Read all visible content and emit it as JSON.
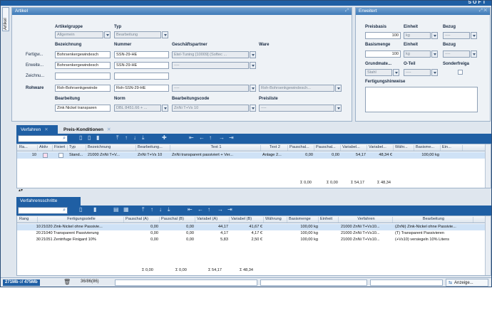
{
  "brand": "SOFT",
  "side_tab": "Artikel",
  "artikel": {
    "title": "Artikel",
    "artikelgruppe_label": "Artikelgruppe",
    "artikelgruppe": "Allgemein",
    "typ_label": "Typ",
    "typ": "Bearbeitung",
    "bezeichnung_label": "Bezeichnung",
    "nummer_label": "Nummer",
    "geschaeftspartner_label": "Geschäftspartner",
    "ware_label": "Ware",
    "fertigw_label": "Fertigw...",
    "fertigw_bez": "Bohrsenkergewindesch",
    "fertigw_nr": "SSN-29-HE",
    "fertigw_gp": "Etel-Tuning [10009] (Softec ...",
    "erweit_label": "Erweite...",
    "erweit_bez": "Bohrsenkergewindesch",
    "erweit_nr": "SSN-29-HE",
    "erweit_gp": "----",
    "zeichnu_label": "Zeichnu...",
    "rohware_label": "Rohware",
    "rohware_bez": "Roh-Bohrsenkgewinde",
    "rohware_nr": "Roh-SSN-29-HE",
    "rohware_gp": "----",
    "rohware_ware": "Roh-Bohrsenkgewindesch...",
    "bearbeitung_label": "Bearbeitung",
    "bearbeitung": "Zink Nickel transparen",
    "norm_label": "Norm",
    "norm": "DBL 8451.66 + ...",
    "bearbeitungscode_label": "Bearbeitungscode",
    "bearbeitungscode": "ZnNi T+Vs 10",
    "preisliste_label": "Preisliste",
    "preisliste": "----"
  },
  "erweitert": {
    "title": "Erweitert",
    "preisbasis_label": "Preisbasis",
    "preisbasis": "100",
    "einheit_label": "Einheit",
    "einheit1": "kg",
    "bezug_label": "Bezug",
    "bezug1": "----",
    "basismenge_label": "Basismenge",
    "basismenge": "100",
    "einheit2": "kg",
    "bezug2": "----",
    "grundmate_label": "Grundmate...",
    "grundmate": "Stahl",
    "oteil_label": "O-Teil",
    "oteil": "----",
    "sonderfreiga_label": "Sonderfreiga",
    "fertigungshinweise_label": "Fertigungshinweise"
  },
  "tabs": [
    {
      "label": "Verfahren"
    },
    {
      "label": "Preis-Konditionen"
    }
  ],
  "verfahren_grid": {
    "columns": [
      "Ra...",
      "Aktiv",
      "Fixiert",
      "Typ",
      "Bezeichnung",
      "Bearbeitung...",
      "Text 1",
      "Text 2",
      "Pauschal...",
      "Pauschal...",
      "Variabel...",
      "Variabel...",
      "Währ...",
      "Basisme...",
      "Ein..."
    ],
    "rows": [
      [
        "10",
        "",
        "",
        "Stand...",
        "21000 ZnNi T+V...",
        "ZnNi T+Vs 10",
        "ZnNi transparent passiviert + Ver...",
        "Anlage 2...",
        "0,00",
        "0,00",
        "54,17",
        "48,34 €",
        "",
        "100,00 kg",
        ""
      ]
    ],
    "sums": [
      "Σ 0,00",
      "Σ 0,00",
      "Σ 54,17",
      "Σ 48,34"
    ]
  },
  "section2_title": "Verfahrensschritte",
  "schritte_grid": {
    "columns": [
      "Rang",
      "Fertigungsstelle",
      "Pauschal (A)",
      "Pauschal (B)",
      "Variabel (A)",
      "Variabel (B)",
      "Währung",
      "Basismenge",
      "Einheit",
      "Verfahren",
      "Bearbeitung"
    ],
    "rows": [
      [
        "10",
        "21020 Zink-Nickel ohne Passivie...",
        "0,00",
        "0,00",
        "44,17",
        "41,67 €",
        "",
        "100,00 kg",
        "",
        "21000 ZnNi T+Vs10...",
        "(ZnNi) Zink-Nickel ohne Passivie..."
      ],
      [
        "20",
        "21040 Transparent Passivierung",
        "0,00",
        "0,00",
        "4,17",
        "4,17 €",
        "",
        "100,00 kg",
        "",
        "21000 ZnNi T+Vs10...",
        "(T) Transparent Passivieren"
      ],
      [
        "30",
        "21051 Zentrifuge Finigard 10%",
        "0,00",
        "0,00",
        "5,83",
        "2,50 €",
        "",
        "100,00 kg",
        "",
        "21000 ZnNi T+Vs10...",
        "(+Vs10) versiegeln 10% Litens"
      ]
    ],
    "sums": [
      "Σ 0,00",
      "Σ 0,00",
      "Σ 54,17",
      "Σ 48,34"
    ]
  },
  "status": {
    "mem_used": "271Mb",
    "mem_of": "of",
    "mem_total": "475Mb",
    "pages": "36/86(86)",
    "anzeige": "Anzeige..."
  }
}
